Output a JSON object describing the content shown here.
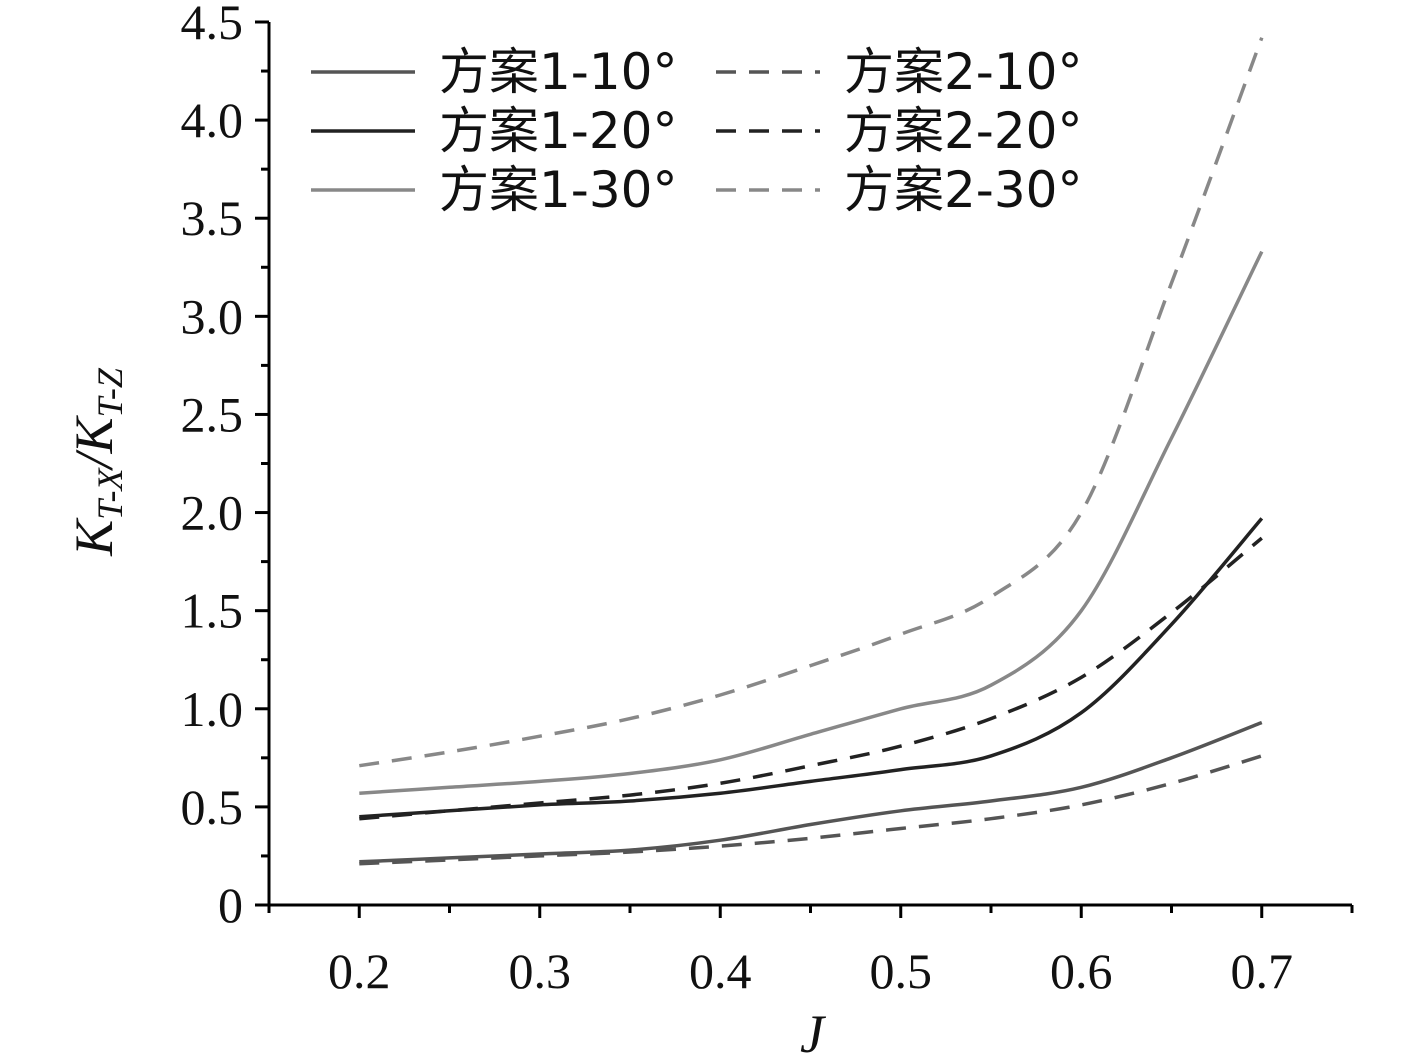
{
  "chart_data": {
    "type": "line",
    "xlabel": "J",
    "ylabel_main": "K",
    "ylabel_sub1": "T-X",
    "ylabel_sep": "/K",
    "ylabel_sub2": "T-Z",
    "xlim": [
      0.15,
      0.75
    ],
    "ylim": [
      0,
      4.5
    ],
    "x_ticks": [
      "0.2",
      "0.3",
      "0.4",
      "0.5",
      "0.6",
      "0.7"
    ],
    "y_ticks": [
      "0",
      "0.5",
      "1.0",
      "1.5",
      "2.0",
      "2.5",
      "3.0",
      "3.5",
      "4.0",
      "4.5"
    ],
    "grid": false,
    "legend_position": "top-left",
    "x": [
      0.2,
      0.25,
      0.3,
      0.35,
      0.4,
      0.45,
      0.5,
      0.55,
      0.6,
      0.65,
      0.7
    ],
    "series": [
      {
        "name": "方案1-10°",
        "color": "#555555",
        "dash": "solid",
        "values": [
          0.22,
          0.24,
          0.26,
          0.28,
          0.33,
          0.41,
          0.48,
          0.53,
          0.6,
          0.75,
          0.93
        ]
      },
      {
        "name": "方案1-20°",
        "color": "#222222",
        "dash": "solid",
        "values": [
          0.45,
          0.48,
          0.51,
          0.53,
          0.57,
          0.63,
          0.69,
          0.76,
          0.98,
          1.43,
          1.97
        ]
      },
      {
        "name": "方案1-30°",
        "color": "#888888",
        "dash": "solid",
        "values": [
          0.57,
          0.6,
          0.63,
          0.67,
          0.74,
          0.87,
          1.0,
          1.12,
          1.5,
          2.38,
          3.33
        ]
      },
      {
        "name": "方案2-10°",
        "color": "#555555",
        "dash": "dashed",
        "values": [
          0.21,
          0.23,
          0.25,
          0.27,
          0.3,
          0.34,
          0.39,
          0.44,
          0.51,
          0.62,
          0.76
        ]
      },
      {
        "name": "方案2-20°",
        "color": "#222222",
        "dash": "dashed",
        "values": [
          0.44,
          0.48,
          0.52,
          0.56,
          0.62,
          0.71,
          0.81,
          0.95,
          1.16,
          1.49,
          1.87
        ]
      },
      {
        "name": "方案2-30°",
        "color": "#888888",
        "dash": "dashed",
        "values": [
          0.71,
          0.78,
          0.86,
          0.95,
          1.07,
          1.22,
          1.38,
          1.57,
          2.0,
          3.17,
          4.42
        ]
      }
    ]
  }
}
